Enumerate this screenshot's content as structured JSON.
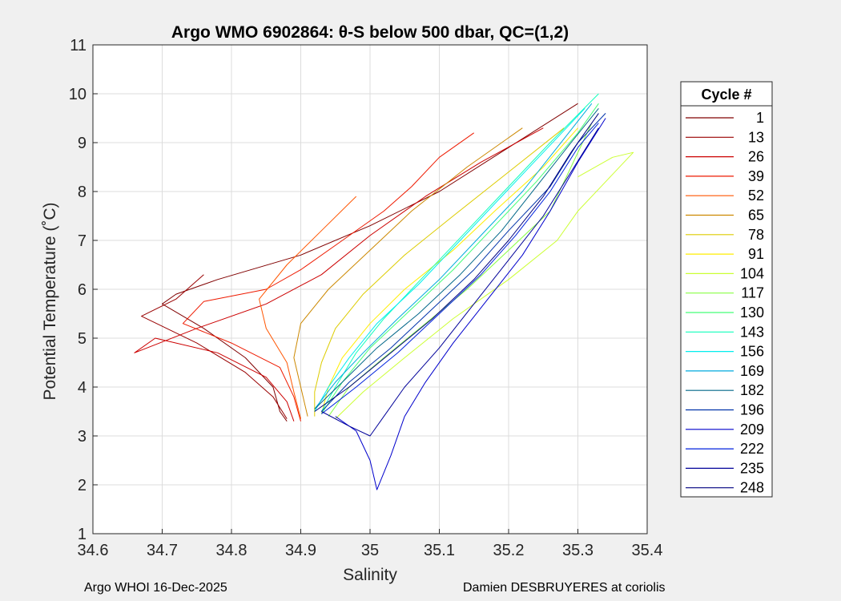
{
  "chart_data": {
    "type": "line",
    "title": "Argo WMO 6902864: θ-S below 500 dbar,  QC=(1,2)",
    "xlabel": "Salinity",
    "ylabel": "Potential Temperature (˚C)",
    "xlim": [
      34.6,
      35.4
    ],
    "ylim": [
      1,
      11
    ],
    "xticks": [
      34.6,
      34.7,
      34.8,
      34.9,
      35.0,
      35.1,
      35.2,
      35.3,
      35.4
    ],
    "xtick_labels": [
      "34.6",
      "34.7",
      "34.8",
      "34.9",
      "35",
      "35.1",
      "35.2",
      "35.3",
      "35.4"
    ],
    "yticks": [
      1,
      2,
      3,
      4,
      5,
      6,
      7,
      8,
      9,
      10,
      11
    ],
    "ytick_labels": [
      "1",
      "2",
      "3",
      "4",
      "5",
      "6",
      "7",
      "8",
      "9",
      "10",
      "11"
    ],
    "grid": true,
    "legend": {
      "title": "Cycle #",
      "placement": "outside-right",
      "entries": [
        {
          "label": "1",
          "color": "#800000"
        },
        {
          "label": "13",
          "color": "#990000"
        },
        {
          "label": "26",
          "color": "#cc0000"
        },
        {
          "label": "39",
          "color": "#ee1a00"
        },
        {
          "label": "52",
          "color": "#ff5500"
        },
        {
          "label": "65",
          "color": "#cc8800"
        },
        {
          "label": "78",
          "color": "#ddcc00"
        },
        {
          "label": "91",
          "color": "#ffee00"
        },
        {
          "label": "104",
          "color": "#ccff33"
        },
        {
          "label": "117",
          "color": "#88ff44"
        },
        {
          "label": "130",
          "color": "#44ff77"
        },
        {
          "label": "143",
          "color": "#11ffbb"
        },
        {
          "label": "156",
          "color": "#00eeee"
        },
        {
          "label": "169",
          "color": "#00aadd"
        },
        {
          "label": "182",
          "color": "#006688"
        },
        {
          "label": "196",
          "color": "#0033aa"
        },
        {
          "label": "209",
          "color": "#0000cc"
        },
        {
          "label": "222",
          "color": "#0022dd"
        },
        {
          "label": "235",
          "color": "#000099"
        },
        {
          "label": "248",
          "color": "#000080"
        }
      ]
    },
    "series": [
      {
        "name": "1",
        "points": [
          [
            34.88,
            3.3
          ],
          [
            34.87,
            3.5
          ],
          [
            34.86,
            4.0
          ],
          [
            34.82,
            4.6
          ],
          [
            34.76,
            5.2
          ],
          [
            34.7,
            5.7
          ],
          [
            34.72,
            5.9
          ],
          [
            34.78,
            6.2
          ],
          [
            34.9,
            6.7
          ],
          [
            35.0,
            7.3
          ],
          [
            35.1,
            8.0
          ],
          [
            35.2,
            8.9
          ],
          [
            35.3,
            9.8
          ]
        ]
      },
      {
        "name": "13",
        "points": [
          [
            34.88,
            3.35
          ],
          [
            34.86,
            3.8
          ],
          [
            34.82,
            4.3
          ],
          [
            34.75,
            4.9
          ],
          [
            34.67,
            5.45
          ],
          [
            34.72,
            5.8
          ],
          [
            34.76,
            6.3
          ]
        ]
      },
      {
        "name": "26",
        "points": [
          [
            34.89,
            3.3
          ],
          [
            34.88,
            3.7
          ],
          [
            34.85,
            4.2
          ],
          [
            34.78,
            4.7
          ],
          [
            34.69,
            5.0
          ],
          [
            34.66,
            4.7
          ],
          [
            34.75,
            5.2
          ],
          [
            34.85,
            5.7
          ],
          [
            34.93,
            6.3
          ],
          [
            35.0,
            7.1
          ],
          [
            35.08,
            7.9
          ],
          [
            35.16,
            8.6
          ],
          [
            35.25,
            9.3
          ]
        ]
      },
      {
        "name": "39",
        "points": [
          [
            34.9,
            3.3
          ],
          [
            34.89,
            3.8
          ],
          [
            34.87,
            4.4
          ],
          [
            34.8,
            4.9
          ],
          [
            34.73,
            5.3
          ],
          [
            34.76,
            5.75
          ],
          [
            34.85,
            6.0
          ],
          [
            34.9,
            6.4
          ],
          [
            34.95,
            6.9
          ],
          [
            35.02,
            7.6
          ],
          [
            35.06,
            8.1
          ],
          [
            35.1,
            8.7
          ],
          [
            35.15,
            9.2
          ]
        ]
      },
      {
        "name": "52",
        "points": [
          [
            34.9,
            3.35
          ],
          [
            34.89,
            3.9
          ],
          [
            34.88,
            4.5
          ],
          [
            34.85,
            5.2
          ],
          [
            34.84,
            5.8
          ],
          [
            34.88,
            6.5
          ],
          [
            34.93,
            7.2
          ],
          [
            34.98,
            7.9
          ]
        ]
      },
      {
        "name": "65",
        "points": [
          [
            34.91,
            3.4
          ],
          [
            34.9,
            4.0
          ],
          [
            34.89,
            4.6
          ],
          [
            34.9,
            5.3
          ],
          [
            34.94,
            6.0
          ],
          [
            35.0,
            6.8
          ],
          [
            35.06,
            7.6
          ],
          [
            35.14,
            8.5
          ],
          [
            35.22,
            9.3
          ]
        ]
      },
      {
        "name": "78",
        "points": [
          [
            34.92,
            3.4
          ],
          [
            34.92,
            3.9
          ],
          [
            34.93,
            4.5
          ],
          [
            34.95,
            5.2
          ],
          [
            34.99,
            5.9
          ],
          [
            35.05,
            6.7
          ],
          [
            35.12,
            7.5
          ],
          [
            35.2,
            8.4
          ],
          [
            35.28,
            9.3
          ]
        ]
      },
      {
        "name": "91",
        "points": [
          [
            34.93,
            3.45
          ],
          [
            34.94,
            4.0
          ],
          [
            34.96,
            4.6
          ],
          [
            35.0,
            5.3
          ],
          [
            35.05,
            6.0
          ],
          [
            35.12,
            6.8
          ],
          [
            35.18,
            7.6
          ],
          [
            35.25,
            8.5
          ],
          [
            35.3,
            9.3
          ]
        ]
      },
      {
        "name": "104",
        "points": [
          [
            34.95,
            3.35
          ],
          [
            34.99,
            3.9
          ],
          [
            35.05,
            4.6
          ],
          [
            35.12,
            5.4
          ],
          [
            35.2,
            6.2
          ],
          [
            35.27,
            7.0
          ],
          [
            35.3,
            7.6
          ],
          [
            35.34,
            8.2
          ],
          [
            35.38,
            8.8
          ],
          [
            35.35,
            8.7
          ],
          [
            35.3,
            8.3
          ]
        ]
      },
      {
        "name": "117",
        "points": [
          [
            34.94,
            3.4
          ],
          [
            34.97,
            4.0
          ],
          [
            35.02,
            4.6
          ],
          [
            35.08,
            5.3
          ],
          [
            35.14,
            6.0
          ],
          [
            35.2,
            6.8
          ],
          [
            35.26,
            7.6
          ],
          [
            35.29,
            8.5
          ],
          [
            35.32,
            9.4
          ]
        ]
      },
      {
        "name": "130",
        "points": [
          [
            34.93,
            3.45
          ],
          [
            34.96,
            4.1
          ],
          [
            35.0,
            4.8
          ],
          [
            35.06,
            5.6
          ],
          [
            35.12,
            6.4
          ],
          [
            35.18,
            7.3
          ],
          [
            35.24,
            8.2
          ],
          [
            35.3,
            9.2
          ],
          [
            35.33,
            9.8
          ]
        ]
      },
      {
        "name": "143",
        "points": [
          [
            34.93,
            3.5
          ],
          [
            34.95,
            4.0
          ],
          [
            34.98,
            4.7
          ],
          [
            35.02,
            5.4
          ],
          [
            35.08,
            6.3
          ],
          [
            35.14,
            7.2
          ],
          [
            35.2,
            8.1
          ],
          [
            35.26,
            9.0
          ],
          [
            35.33,
            10.0
          ]
        ]
      },
      {
        "name": "156",
        "points": [
          [
            34.92,
            3.5
          ],
          [
            34.94,
            4.0
          ],
          [
            34.97,
            4.6
          ],
          [
            35.01,
            5.3
          ],
          [
            35.07,
            6.1
          ],
          [
            35.13,
            7.0
          ],
          [
            35.19,
            7.9
          ],
          [
            35.25,
            8.8
          ],
          [
            35.31,
            9.7
          ]
        ]
      },
      {
        "name": "169",
        "points": [
          [
            34.92,
            3.55
          ],
          [
            34.95,
            4.1
          ],
          [
            34.99,
            4.7
          ],
          [
            35.04,
            5.4
          ],
          [
            35.1,
            6.2
          ],
          [
            35.16,
            7.1
          ],
          [
            35.22,
            8.0
          ],
          [
            35.27,
            8.9
          ],
          [
            35.32,
            9.8
          ]
        ]
      },
      {
        "name": "182",
        "points": [
          [
            34.92,
            3.55
          ],
          [
            34.96,
            4.1
          ],
          [
            35.01,
            4.8
          ],
          [
            35.07,
            5.5
          ],
          [
            35.13,
            6.3
          ],
          [
            35.19,
            7.2
          ],
          [
            35.24,
            8.1
          ],
          [
            35.29,
            9.0
          ],
          [
            35.33,
            9.7
          ]
        ]
      },
      {
        "name": "196",
        "points": [
          [
            34.93,
            3.5
          ],
          [
            34.97,
            4.1
          ],
          [
            35.03,
            4.8
          ],
          [
            35.09,
            5.6
          ],
          [
            35.15,
            6.4
          ],
          [
            35.2,
            7.2
          ],
          [
            35.26,
            8.1
          ],
          [
            35.3,
            9.0
          ],
          [
            35.34,
            9.6
          ]
        ]
      },
      {
        "name": "209",
        "points": [
          [
            34.95,
            3.4
          ],
          [
            34.98,
            3.1
          ],
          [
            35.0,
            2.5
          ],
          [
            35.01,
            1.9
          ],
          [
            35.03,
            2.6
          ],
          [
            35.05,
            3.4
          ],
          [
            35.08,
            4.1
          ],
          [
            35.12,
            4.9
          ],
          [
            35.17,
            5.8
          ],
          [
            35.22,
            6.7
          ],
          [
            35.26,
            7.6
          ],
          [
            35.3,
            8.6
          ],
          [
            35.34,
            9.5
          ]
        ]
      },
      {
        "name": "222",
        "points": [
          [
            34.93,
            3.45
          ],
          [
            34.98,
            4.0
          ],
          [
            35.04,
            4.7
          ],
          [
            35.1,
            5.5
          ],
          [
            35.16,
            6.3
          ],
          [
            35.21,
            7.1
          ],
          [
            35.26,
            8.0
          ],
          [
            35.3,
            8.9
          ],
          [
            35.33,
            9.4
          ]
        ]
      },
      {
        "name": "235",
        "points": [
          [
            34.93,
            3.5
          ],
          [
            34.97,
            3.2
          ],
          [
            35.0,
            3.0
          ],
          [
            35.02,
            3.4
          ],
          [
            35.05,
            4.0
          ],
          [
            35.1,
            4.8
          ],
          [
            35.15,
            5.7
          ],
          [
            35.2,
            6.6
          ],
          [
            35.25,
            7.5
          ],
          [
            35.29,
            8.4
          ],
          [
            35.33,
            9.3
          ]
        ]
      },
      {
        "name": "248",
        "points": [
          [
            34.92,
            3.5
          ],
          [
            34.97,
            4.0
          ],
          [
            35.03,
            4.7
          ],
          [
            35.09,
            5.4
          ],
          [
            35.15,
            6.2
          ],
          [
            35.2,
            7.0
          ],
          [
            35.25,
            7.9
          ],
          [
            35.29,
            8.8
          ],
          [
            35.33,
            9.6
          ]
        ]
      }
    ]
  },
  "footer": {
    "left": "Argo WHOI 16-Dec-2025",
    "right": "Damien DESBRUYERES at coriolis"
  }
}
